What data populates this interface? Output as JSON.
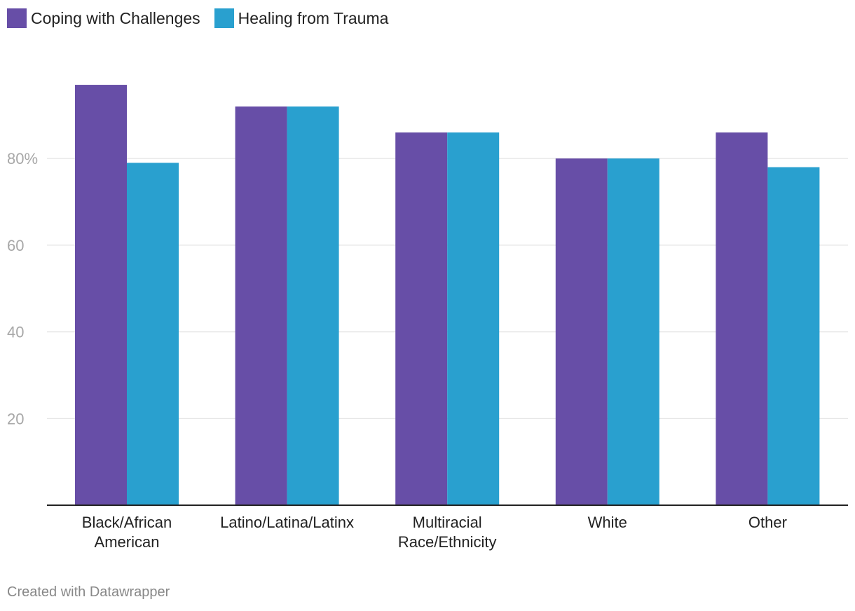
{
  "chart_data": {
    "type": "bar",
    "title": "",
    "xlabel": "",
    "ylabel": "",
    "categories": [
      [
        "Black/African",
        "American"
      ],
      [
        "Latino/Latina/Latinx"
      ],
      [
        "Multiracial",
        "Race/Ethnicity"
      ],
      [
        "White"
      ],
      [
        "Other"
      ]
    ],
    "series": [
      {
        "name": "Coping with Challenges",
        "color": "#674ea7",
        "values": [
          97,
          92,
          86,
          80,
          86
        ]
      },
      {
        "name": "Healing from Trauma",
        "color": "#29a0cf",
        "values": [
          79,
          92,
          86,
          80,
          78
        ]
      }
    ],
    "ylim": [
      0,
      100
    ],
    "yticks": [
      {
        "value": 20,
        "label": "20"
      },
      {
        "value": 40,
        "label": "40"
      },
      {
        "value": 60,
        "label": "60"
      },
      {
        "value": 80,
        "label": "80%"
      }
    ],
    "grid": true,
    "legend_position": "top-left"
  },
  "footer": {
    "credit": "Created with Datawrapper"
  }
}
